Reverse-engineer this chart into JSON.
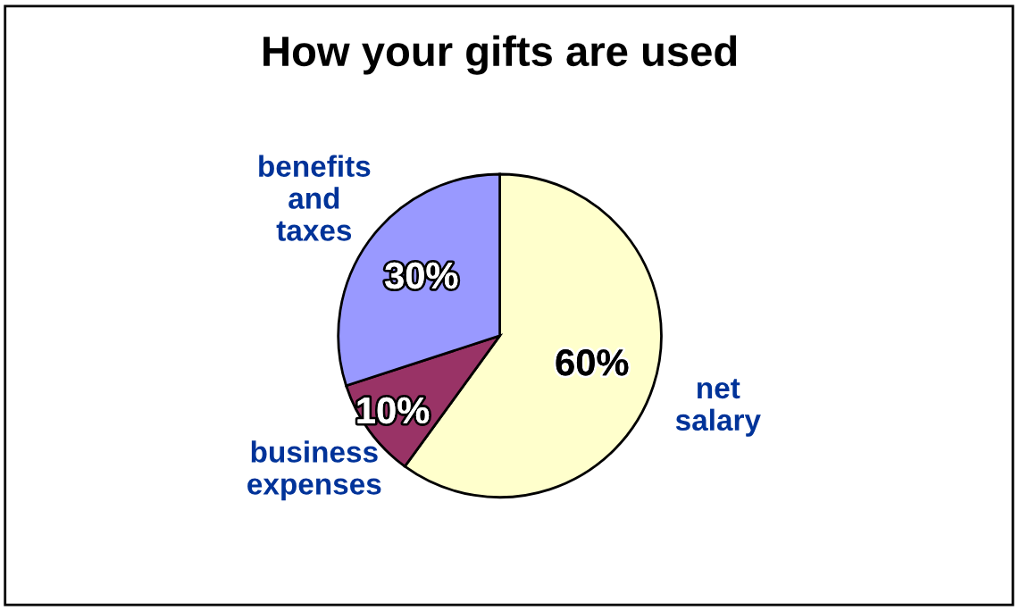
{
  "chart_data": {
    "type": "pie",
    "title": "How your gifts are used",
    "categories": [
      "net\nsalary",
      "business\nexpenses",
      "benefits\nand\ntaxes"
    ],
    "values": [
      60,
      10,
      30
    ],
    "value_labels": [
      "60%",
      "10%",
      "30%"
    ],
    "colors": [
      "#ffffcc",
      "#993366",
      "#9999ff"
    ],
    "legend": false
  }
}
